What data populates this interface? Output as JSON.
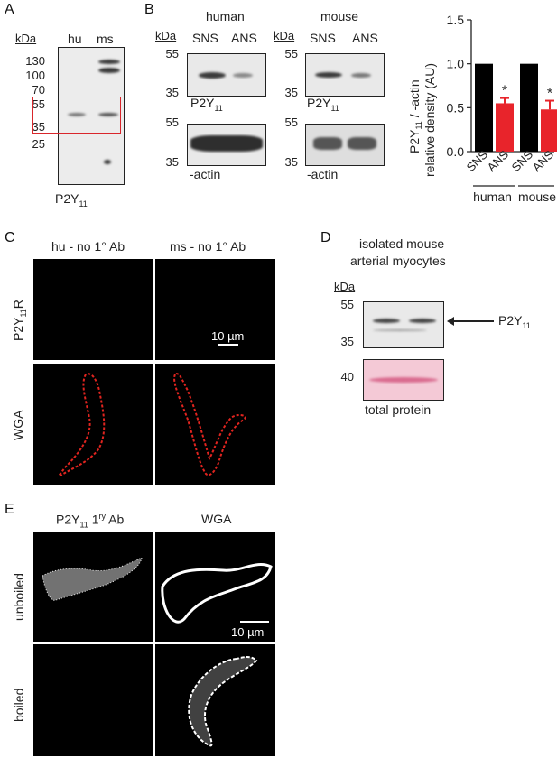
{
  "panelA": {
    "letter": "A",
    "kda": "kDa",
    "lanes": [
      "hu",
      "ms"
    ],
    "markers": [
      "130",
      "100",
      "70",
      "55",
      "35",
      "25"
    ],
    "label_main": "P2Y",
    "label_sub": "11"
  },
  "panelB": {
    "letter": "B",
    "human_title": "human",
    "mouse_title": "mouse",
    "kda": "kDa",
    "lanes": [
      "SNS",
      "ANS"
    ],
    "top_markers": [
      "55",
      "35"
    ],
    "bottom_markers": [
      "55",
      "35"
    ],
    "p2y_main": "P2Y",
    "p2y_sub": "11",
    "actin_label": "-actin"
  },
  "chart_data": {
    "type": "bar",
    "ylabel_line1": "P2Y",
    "ylabel_sub": "11",
    "ylabel_line1_rest": " / -actin",
    "ylabel_line2": "relative density (AU)",
    "ylim": [
      0,
      1.5
    ],
    "yticks": [
      "0.0",
      "0.5",
      "1.0",
      "1.5"
    ],
    "categories": [
      "SNS",
      "ANS",
      "SNS",
      "ANS"
    ],
    "values": [
      1.0,
      0.55,
      1.0,
      0.48
    ],
    "errors": [
      0,
      0.06,
      0,
      0.1
    ],
    "colors": [
      "#000000",
      "#e8242b",
      "#000000",
      "#e8242b"
    ],
    "significance": [
      "",
      "*",
      "",
      "*"
    ],
    "groups": [
      "human",
      "mouse"
    ]
  },
  "panelC": {
    "letter": "C",
    "col1": "hu - no 1° Ab",
    "col2": "ms -  no 1° Ab",
    "row1_main": "P2Y",
    "row1_sub": "11",
    "row1_rest": "R",
    "row2": "WGA",
    "scale": "10 µm"
  },
  "panelD": {
    "letter": "D",
    "title_line1": "isolated mouse",
    "title_line2": "arterial myocytes",
    "kda": "kDa",
    "markers_top": [
      "55",
      "35"
    ],
    "marker_bottom": "40",
    "arrow_main": "P2Y",
    "arrow_sub": "11",
    "total_protein": "total protein"
  },
  "panelE": {
    "letter": "E",
    "col1_main": "P2Y",
    "col1_sub": "11",
    "col1_rest": " 1",
    "col1_sup": "ry",
    "col1_end": " Ab",
    "col2": "WGA",
    "row1": "unboiled",
    "row2": "boiled",
    "scale": "10 µm"
  }
}
